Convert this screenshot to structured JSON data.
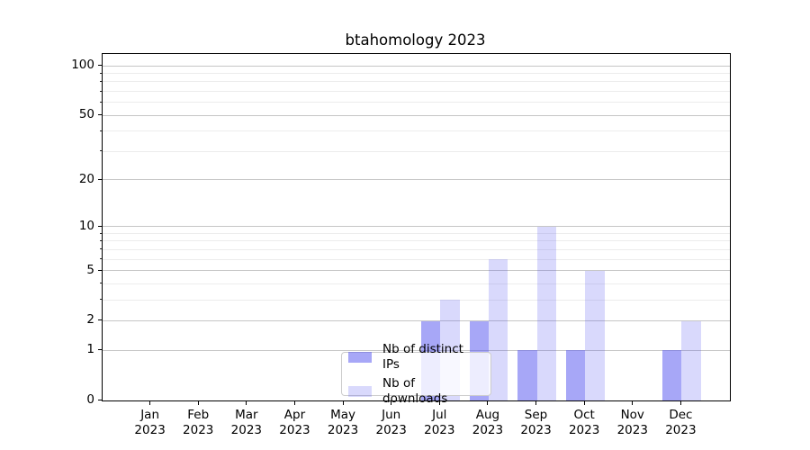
{
  "chart_data": {
    "type": "bar",
    "title": "btahomology 2023",
    "x_axis": {
      "months": [
        "Jan",
        "Feb",
        "Mar",
        "Apr",
        "May",
        "Jun",
        "Jul",
        "Aug",
        "Sep",
        "Oct",
        "Nov",
        "Dec"
      ],
      "year": "2023"
    },
    "y_axis": {
      "scale": "log1p",
      "ticks": [
        0,
        1,
        2,
        5,
        10,
        20,
        50,
        100
      ],
      "minor_ticks": [
        3,
        4,
        6,
        7,
        8,
        9,
        30,
        40,
        60,
        70,
        80,
        90
      ],
      "ylim": [
        0,
        118
      ]
    },
    "series": [
      {
        "name": "Nb of distinct IPs",
        "color": "rgba(80,80,240,0.5)",
        "values": [
          0,
          0,
          0,
          0,
          0,
          0,
          2,
          2,
          1,
          1,
          0,
          1
        ]
      },
      {
        "name": "Nb of downloads",
        "color": "rgba(80,80,240,0.22)",
        "values": [
          0,
          0,
          0,
          0,
          0,
          0,
          3,
          6,
          10,
          5,
          0,
          2
        ]
      }
    ],
    "legend_position": "lower center",
    "grid": "horizontal"
  }
}
